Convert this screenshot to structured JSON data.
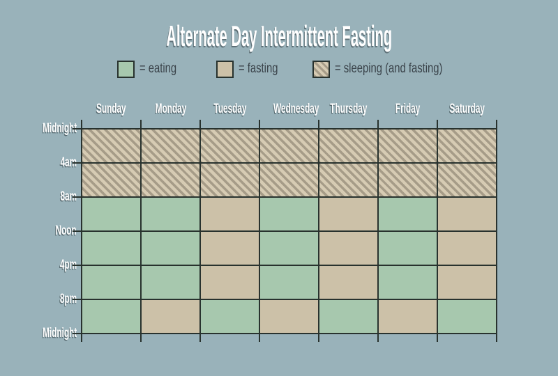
{
  "title": "Alternate Day Intermittent Fasting",
  "colors": {
    "background": "#99b2ba",
    "eating": "#a7c8ae",
    "fasting": "#ccc1a8",
    "sleeping_light": "#d6cbb3",
    "sleeping_dark": "#a69c88",
    "grid_line": "#28322e",
    "legend_text": "#3a434a",
    "label_text": "#ffffff"
  },
  "chart_data": {
    "type": "heatmap",
    "title": "Alternate Day Intermittent Fasting",
    "legend": [
      {
        "key": "eating",
        "label": "= eating"
      },
      {
        "key": "fasting",
        "label": "= fasting"
      },
      {
        "key": "sleeping",
        "label": "= sleeping (and fasting)"
      }
    ],
    "legend_position": "top",
    "grid": true,
    "columns": [
      "Sunday",
      "Monday",
      "Tuesday",
      "Wednesday",
      "Thursday",
      "Friday",
      "Saturday"
    ],
    "row_labels": [
      "Midnight",
      "4am",
      "8am",
      "Noon",
      "4pm",
      "8pm",
      "Midnight"
    ],
    "cells": [
      [
        "sleeping",
        "sleeping",
        "sleeping",
        "sleeping",
        "sleeping",
        "sleeping",
        "sleeping"
      ],
      [
        "sleeping",
        "sleeping",
        "sleeping",
        "sleeping",
        "sleeping",
        "sleeping",
        "sleeping"
      ],
      [
        "eating",
        "eating",
        "fasting",
        "eating",
        "fasting",
        "eating",
        "fasting"
      ],
      [
        "eating",
        "eating",
        "fasting",
        "eating",
        "fasting",
        "eating",
        "fasting"
      ],
      [
        "eating",
        "eating",
        "fasting",
        "eating",
        "fasting",
        "eating",
        "fasting"
      ],
      [
        "eating",
        "fasting",
        "eating",
        "fasting",
        "eating",
        "fasting",
        "eating"
      ]
    ]
  }
}
